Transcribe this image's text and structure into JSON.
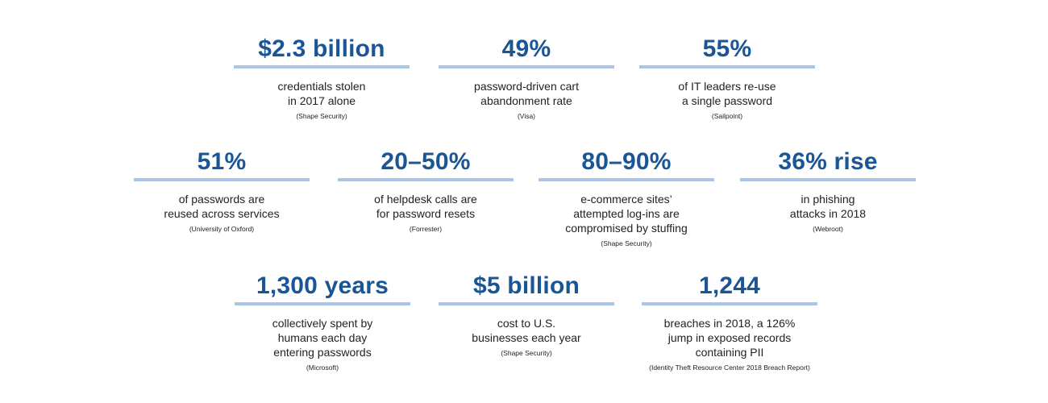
{
  "stats": [
    {
      "value": "$2.3 billion",
      "lines": [
        "credentials stolen",
        "in 2017 alone"
      ],
      "source": "(Shape Security)"
    },
    {
      "value": "49%",
      "lines": [
        "password-driven cart",
        "abandonment rate"
      ],
      "source": "(Visa)"
    },
    {
      "value": "55%",
      "lines": [
        "of IT leaders re-use",
        "a single password"
      ],
      "source": "(Sailpoint)"
    },
    {
      "value": "51%",
      "lines": [
        "of passwords are",
        "reused across services"
      ],
      "source": "(University of Oxford)"
    },
    {
      "value": "20–50%",
      "lines": [
        "of helpdesk calls are",
        "for password resets"
      ],
      "source": "(Forrester)"
    },
    {
      "value": "80–90%",
      "lines": [
        "e-commerce sites’",
        "attempted log-ins are",
        "compromised by stuffing"
      ],
      "source": "(Shape Security)"
    },
    {
      "value": "36% rise",
      "lines": [
        "in phishing",
        "attacks in 2018"
      ],
      "source": "(Webroot)"
    },
    {
      "value": "1,300 years",
      "lines": [
        "collectively spent by",
        "humans each day",
        "entering passwords"
      ],
      "source": "(Microsoft)"
    },
    {
      "value": "$5 billion",
      "lines": [
        "cost to U.S.",
        "businesses each year"
      ],
      "source": "(Shape Security)"
    },
    {
      "value": "1,244",
      "lines": [
        "breaches in 2018, a 126%",
        "jump in exposed records",
        "containing PII"
      ],
      "source": "(Identity Theft Resource Center 2018 Breach Report)"
    }
  ],
  "colors": {
    "value": "#1a5596",
    "rule": "#a9c6e8",
    "text": "#222222"
  }
}
